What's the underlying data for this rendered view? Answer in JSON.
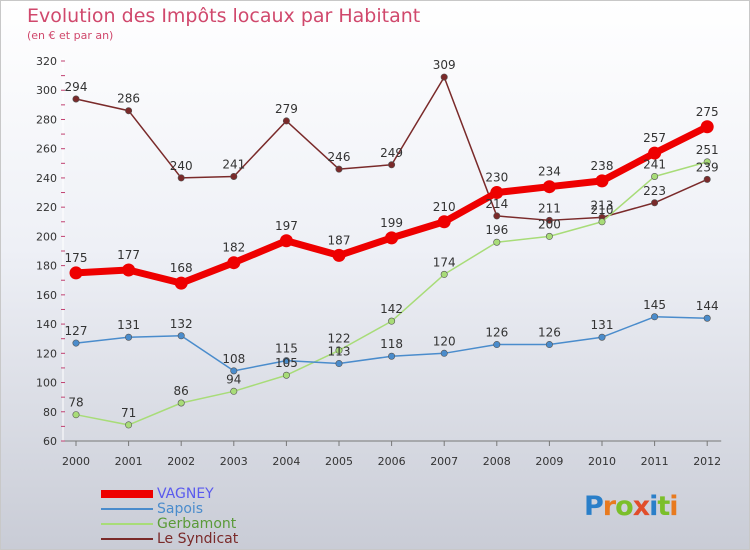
{
  "title": "Evolution des Impôts locaux par Habitant",
  "subtitle": "(en € et par an)",
  "logo": "Proxiti",
  "chart_data": {
    "type": "line",
    "title": "Evolution des Impôts locaux par Habitant",
    "subtitle": "(en € et par an)",
    "x": [
      "2000",
      "2001",
      "2002",
      "2003",
      "2004",
      "2005",
      "2006",
      "2007",
      "2008",
      "2009",
      "2010",
      "2011",
      "2012"
    ],
    "yticks": [
      60,
      80,
      100,
      120,
      140,
      160,
      180,
      200,
      220,
      240,
      260,
      280,
      300,
      320
    ],
    "ylim": [
      60,
      320
    ],
    "grid": false,
    "legend": "bottom-left",
    "series": [
      {
        "name": "VAGNEY",
        "color": "#ee0000",
        "values": [
          175,
          177,
          168,
          182,
          197,
          187,
          199,
          210,
          230,
          234,
          238,
          257,
          275
        ]
      },
      {
        "name": "Sapois",
        "color": "#4a8ccc",
        "values": [
          127,
          131,
          132,
          108,
          115,
          113,
          118,
          120,
          126,
          126,
          131,
          145,
          144
        ]
      },
      {
        "name": "Gerbamont",
        "color": "#a8dc78",
        "values": [
          78,
          71,
          86,
          94,
          105,
          122,
          142,
          174,
          196,
          200,
          210,
          241,
          251
        ]
      },
      {
        "name": "Le Syndicat",
        "color": "#7a2a2a",
        "values": [
          294,
          286,
          240,
          241,
          279,
          246,
          249,
          309,
          214,
          211,
          213,
          223,
          239
        ]
      }
    ]
  }
}
